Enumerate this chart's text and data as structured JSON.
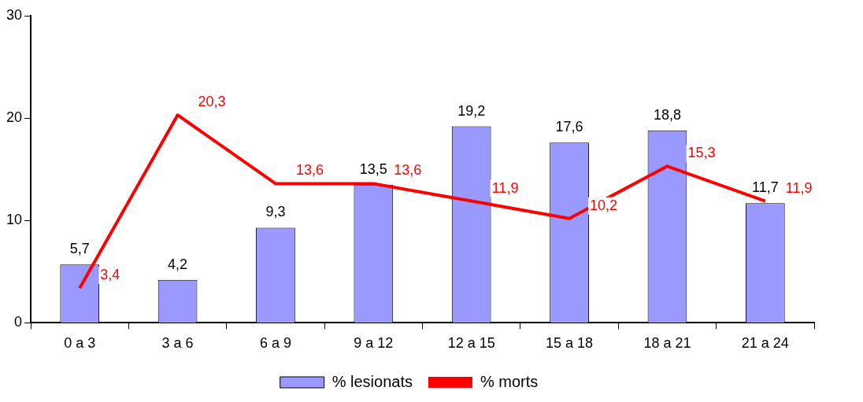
{
  "chart_data": {
    "type": "bar",
    "categories": [
      "0 a 3",
      "3 a 6",
      "6 a 9",
      "9 a 12",
      "12 a 15",
      "15 a 18",
      "18 a 21",
      "21 a 24"
    ],
    "series": [
      {
        "name": "% lesionats",
        "color": "#9999ff",
        "values": [
          5.7,
          4.2,
          9.3,
          13.5,
          19.2,
          17.6,
          18.8,
          11.7
        ],
        "value_labels": [
          "5,7",
          "4,2",
          "9,3",
          "13,5",
          "19,2",
          "17,6",
          "18,8",
          "11,7"
        ]
      },
      {
        "name": "% morts",
        "type": "line",
        "color": "#ff0000",
        "values": [
          3.4,
          20.3,
          13.6,
          13.6,
          11.9,
          10.2,
          15.3,
          11.9
        ],
        "value_labels": [
          "3,4",
          "20,3",
          "13,6",
          "13,6",
          "11,9",
          "10,2",
          "15,3",
          "11,9"
        ]
      }
    ],
    "ylim": [
      0,
      30
    ],
    "yticks": [
      0,
      10,
      20,
      30
    ],
    "grid": false,
    "legend": "bottom",
    "marker": "none",
    "line_style": "solid"
  }
}
